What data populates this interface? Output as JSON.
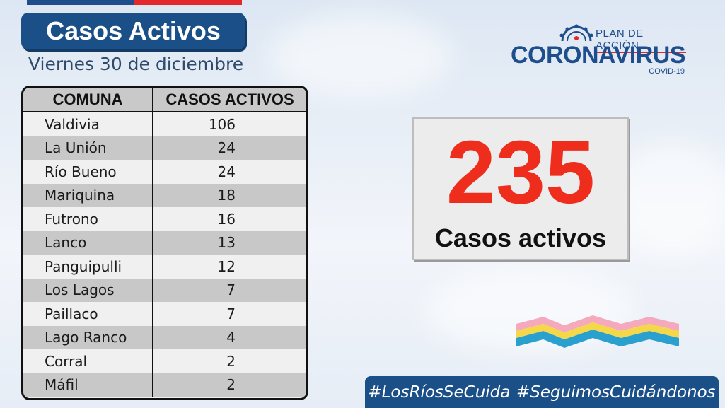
{
  "header": {
    "title": "Casos Activos",
    "date": "Viernes 30 de diciembre"
  },
  "logo": {
    "plan": "PLAN DE ACCIÓN",
    "name": "CORONAVIRUS",
    "sub": "COVID-19",
    "icon": "virus-icon"
  },
  "table": {
    "headers": [
      "COMUNA",
      "CASOS ACTIVOS"
    ],
    "rows": [
      {
        "comuna": "Valdivia",
        "casos": "106"
      },
      {
        "comuna": "La Unión",
        "casos": "24"
      },
      {
        "comuna": "Río Bueno",
        "casos": "24"
      },
      {
        "comuna": "Mariquina",
        "casos": "18"
      },
      {
        "comuna": "Futrono",
        "casos": "16"
      },
      {
        "comuna": "Lanco",
        "casos": "13"
      },
      {
        "comuna": "Panguipulli",
        "casos": "12"
      },
      {
        "comuna": "Los Lagos",
        "casos": "7"
      },
      {
        "comuna": "Paillaco",
        "casos": "7"
      },
      {
        "comuna": "Lago Ranco",
        "casos": "4"
      },
      {
        "comuna": "Corral",
        "casos": "2"
      },
      {
        "comuna": "Máfil",
        "casos": "2"
      }
    ]
  },
  "summary": {
    "total": "235",
    "label": "Casos activos"
  },
  "hashtags": [
    "#LosRíosSeCuida",
    "#SeguimosCuidándonos"
  ],
  "colors": {
    "brand_blue": "#1b4f87",
    "accent_red": "#e3282d",
    "total_red": "#ef2d1c"
  }
}
